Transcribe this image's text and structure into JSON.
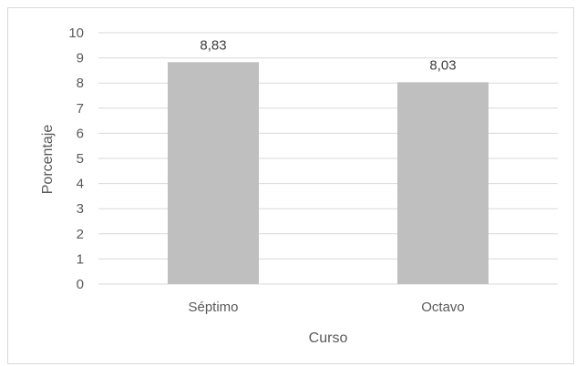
{
  "chart_data": {
    "type": "bar",
    "categories": [
      "Séptimo",
      "Octavo"
    ],
    "values": [
      8.83,
      8.03
    ],
    "data_labels": [
      "8,83",
      "8,03"
    ],
    "title": "",
    "xlabel": "Curso",
    "ylabel": "Porcentaje",
    "ylim": [
      0,
      10
    ],
    "y_ticks": [
      0,
      1,
      2,
      3,
      4,
      5,
      6,
      7,
      8,
      9,
      10
    ],
    "grid": true,
    "legend": "none",
    "bar_color": "#bfbfbf",
    "grid_color": "#d9d9d9"
  }
}
